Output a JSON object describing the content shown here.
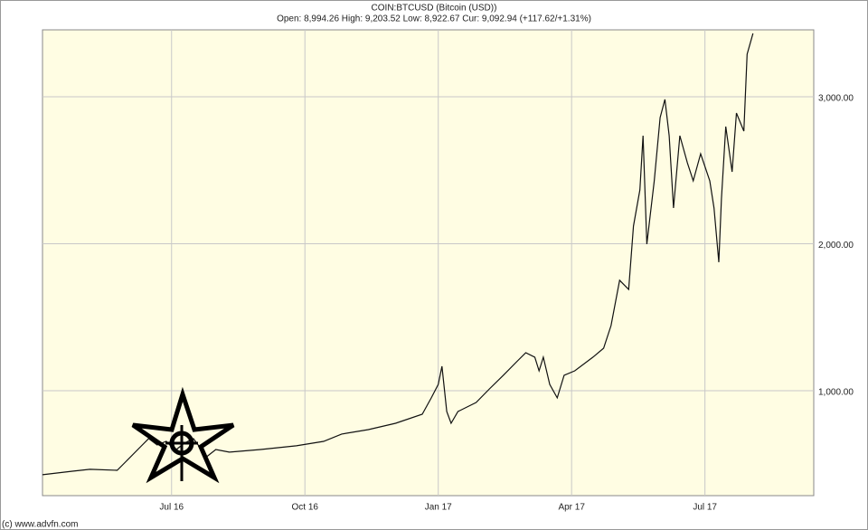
{
  "chart_data": {
    "type": "line",
    "title": "COIN:BTCUSD (Bitcoin (USD))",
    "subtitle": "Open: 8,994.26 High: 9,203.52 Low: 8,922.67 Cur: 9,092.94 (+117.62/+1.31%)",
    "footer": "(c) www.advfn.com",
    "x": [
      2016.258,
      2016.314,
      2016.347,
      2016.398,
      2016.415,
      2016.44,
      2016.457,
      2016.473,
      2016.49,
      2016.507,
      2016.524,
      2016.541,
      2016.566,
      2016.583,
      2016.608,
      2016.667,
      2016.734,
      2016.785,
      2016.819,
      2016.869,
      2016.92,
      2016.97,
      2016.987,
      2017.0,
      2017.007,
      2017.016,
      2017.024,
      2017.037,
      2017.071,
      2017.096,
      2017.122,
      2017.147,
      2017.164,
      2017.181,
      2017.189,
      2017.197,
      2017.209,
      2017.223,
      2017.236,
      2017.256,
      2017.29,
      2017.31,
      2017.324,
      2017.34,
      2017.357,
      2017.366,
      2017.378,
      2017.384,
      2017.391,
      2017.405,
      2017.416,
      2017.425,
      2017.433,
      2017.441,
      2017.453,
      2017.467,
      2017.478,
      2017.492,
      2017.509,
      2017.517,
      2017.526,
      2017.531,
      2017.539,
      2017.551,
      2017.559,
      2017.573,
      2017.579,
      2017.59
    ],
    "series": [
      {
        "color": "#111111",
        "values": [
          428,
          452,
          465,
          458,
          520,
          612,
          674,
          631,
          655,
          594,
          643,
          674,
          551,
          600,
          582,
          600,
          625,
          655,
          705,
          735,
          778,
          840,
          951,
          1043,
          1166,
          858,
          778,
          858,
          920,
          1012,
          1105,
          1197,
          1258,
          1228,
          1135,
          1228,
          1043,
          951,
          1105,
          1135,
          1228,
          1289,
          1443,
          1751,
          1689,
          2120,
          2366,
          2735,
          1997,
          2428,
          2858,
          2982,
          2735,
          2243,
          2735,
          2551,
          2428,
          2612,
          2428,
          2243,
          1874,
          2305,
          2797,
          2489,
          2889,
          2766,
          3289,
          3431
        ]
      }
    ],
    "xlim": [
      2016.258,
      2017.704
    ],
    "xticks": [
      {
        "value": 2016.5,
        "label": "Jul 16"
      },
      {
        "value": 2016.75,
        "label": "Oct 16"
      },
      {
        "value": 2017.0,
        "label": "Jan 17"
      },
      {
        "value": 2017.25,
        "label": "Apr 17"
      },
      {
        "value": 2017.5,
        "label": "Jul 17"
      }
    ],
    "ylim": [
      286,
      3455
    ],
    "yticks": [
      {
        "value": 1000,
        "label": "1,000.00"
      },
      {
        "value": 2000,
        "label": "2,000.00"
      },
      {
        "value": 3000,
        "label": "3,000.00"
      }
    ],
    "grid": true,
    "plot_background": "#fffde3"
  }
}
